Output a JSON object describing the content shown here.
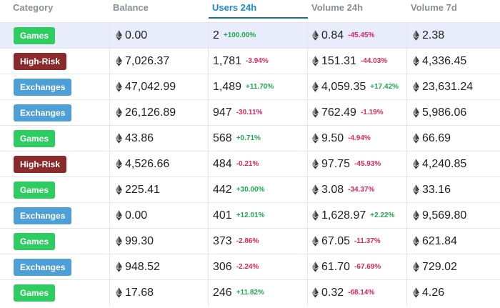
{
  "header": {
    "category": "Category",
    "balance": "Balance",
    "users": "Users 24h",
    "volume24": "Volume 24h",
    "volume7": "Volume 7d"
  },
  "category_colors": {
    "Games": "#2ecc61",
    "High-Risk": "#8b2a2a",
    "Exchanges": "#4d9fd6"
  },
  "icons": {
    "currency": "ethereum-icon"
  },
  "rows": [
    {
      "category": "Games",
      "balance": "0.00",
      "users": "2",
      "users_chg": "+100.00%",
      "vol24": "0.84",
      "vol24_chg": "-45.45%",
      "vol7": "2.38"
    },
    {
      "category": "High-Risk",
      "balance": "7,026.37",
      "users": "1,781",
      "users_chg": "-3.94%",
      "vol24": "151.31",
      "vol24_chg": "-44.03%",
      "vol7": "4,336.45"
    },
    {
      "category": "Exchanges",
      "balance": "47,042.99",
      "users": "1,489",
      "users_chg": "+11.70%",
      "vol24": "4,059.35",
      "vol24_chg": "+17.42%",
      "vol7": "23,631.24"
    },
    {
      "category": "Exchanges",
      "balance": "26,126.89",
      "users": "947",
      "users_chg": "-30.11%",
      "vol24": "762.49",
      "vol24_chg": "-1.19%",
      "vol7": "5,986.06"
    },
    {
      "category": "Games",
      "balance": "43.86",
      "users": "568",
      "users_chg": "+0.71%",
      "vol24": "9.50",
      "vol24_chg": "-4.94%",
      "vol7": "66.69"
    },
    {
      "category": "High-Risk",
      "balance": "4,526.66",
      "users": "484",
      "users_chg": "-0.21%",
      "vol24": "97.75",
      "vol24_chg": "-45.93%",
      "vol7": "4,240.85"
    },
    {
      "category": "Games",
      "balance": "225.41",
      "users": "442",
      "users_chg": "+30.00%",
      "vol24": "3.08",
      "vol24_chg": "-34.37%",
      "vol7": "33.16"
    },
    {
      "category": "Exchanges",
      "balance": "0.00",
      "users": "401",
      "users_chg": "+12.01%",
      "vol24": "1,628.97",
      "vol24_chg": "+2.22%",
      "vol7": "9,569.80"
    },
    {
      "category": "Games",
      "balance": "99.30",
      "users": "373",
      "users_chg": "-2.86%",
      "vol24": "67.05",
      "vol24_chg": "-11.37%",
      "vol7": "621.84"
    },
    {
      "category": "Exchanges",
      "balance": "948.52",
      "users": "306",
      "users_chg": "-2.24%",
      "vol24": "61.70",
      "vol24_chg": "-67.69%",
      "vol7": "729.02"
    },
    {
      "category": "Games",
      "balance": "17.68",
      "users": "246",
      "users_chg": "+11.82%",
      "vol24": "0.32",
      "vol24_chg": "-68.14%",
      "vol7": "4.26"
    }
  ]
}
